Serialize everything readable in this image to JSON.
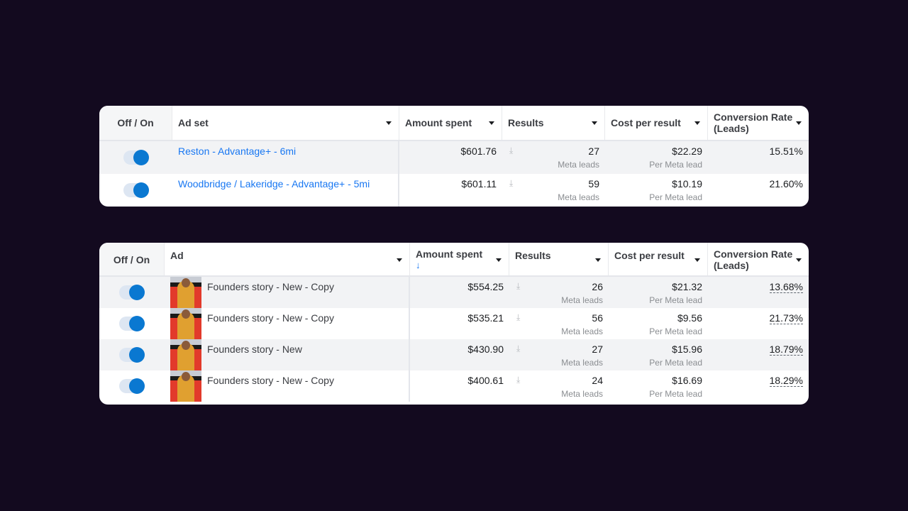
{
  "adsets_table": {
    "columns": [
      "Off / On",
      "Ad set",
      "Amount spent",
      "Results",
      "Cost per result",
      "Conversion Rate (Leads)"
    ],
    "rows": [
      {
        "on": true,
        "name": "Reston - Advantage+ - 6mi",
        "amount": "$601.76",
        "results": "27",
        "results_sub": "Meta leads",
        "cost": "$22.29",
        "cost_sub": "Per Meta lead",
        "conv": "15.51%"
      },
      {
        "on": true,
        "name": "Woodbridge / Lakeridge - Advantage+ - 5mi",
        "amount": "$601.11",
        "results": "59",
        "results_sub": "Meta leads",
        "cost": "$10.19",
        "cost_sub": "Per Meta lead",
        "conv": "21.60%"
      }
    ]
  },
  "ads_table": {
    "columns": [
      "Off / On",
      "Ad",
      "Amount spent",
      "Results",
      "Cost per result",
      "Conversion Rate (Leads)"
    ],
    "sort_icon": "arrow-down-icon",
    "rows": [
      {
        "on": true,
        "name": "Founders story - New - Copy",
        "amount": "$554.25",
        "results": "26",
        "results_sub": "Meta leads",
        "cost": "$21.32",
        "cost_sub": "Per Meta lead",
        "conv": "13.68%"
      },
      {
        "on": true,
        "name": "Founders story - New - Copy",
        "amount": "$535.21",
        "results": "56",
        "results_sub": "Meta leads",
        "cost": "$9.56",
        "cost_sub": "Per Meta lead",
        "conv": "21.73%"
      },
      {
        "on": true,
        "name": "Founders story - New",
        "amount": "$430.90",
        "results": "27",
        "results_sub": "Meta leads",
        "cost": "$15.96",
        "cost_sub": "Per Meta lead",
        "conv": "18.79%"
      },
      {
        "on": true,
        "name": "Founders story - New - Copy",
        "amount": "$400.61",
        "results": "24",
        "results_sub": "Meta leads",
        "cost": "$16.69",
        "cost_sub": "Per Meta lead",
        "conv": "18.29%"
      }
    ]
  },
  "colors": {
    "toggle_on": "#0a78d1",
    "link": "#1877f2",
    "background": "#130a1f"
  }
}
